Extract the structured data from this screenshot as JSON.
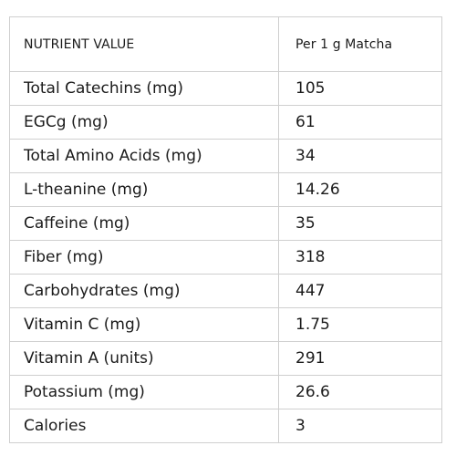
{
  "table": {
    "headers": [
      "NUTRIENT VALUE",
      "Per 1 g Matcha"
    ],
    "rows": [
      [
        "Total Catechins (mg)",
        "105"
      ],
      [
        "EGCg (mg)",
        "61"
      ],
      [
        "Total Amino Acids (mg)",
        "34"
      ],
      [
        "L-theanine (mg)",
        "14.26"
      ],
      [
        "Caffeine (mg)",
        "35"
      ],
      [
        "Fiber (mg)",
        "318"
      ],
      [
        "Carbohydrates (mg)",
        "447"
      ],
      [
        "Vitamin C (mg)",
        "1.75"
      ],
      [
        "Vitamin A (units)",
        "291"
      ],
      [
        "Potassium  (mg)",
        "26.6"
      ],
      [
        "Calories",
        "3"
      ]
    ]
  }
}
